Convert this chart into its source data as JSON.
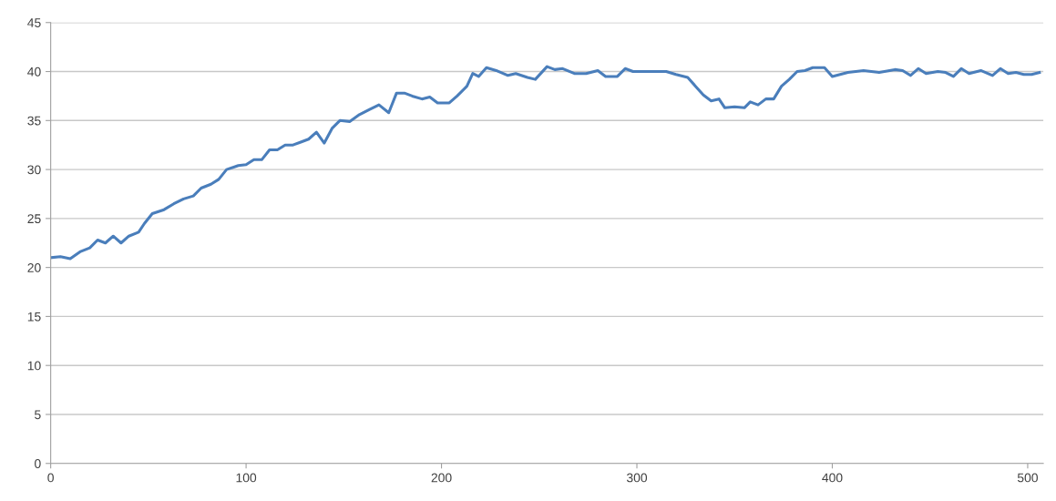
{
  "chart_data": {
    "type": "line",
    "x": [
      0,
      5,
      10,
      15,
      20,
      24,
      28,
      32,
      36,
      40,
      45,
      48,
      52,
      58,
      63,
      68,
      73,
      77,
      82,
      86,
      90,
      96,
      100,
      104,
      108,
      112,
      116,
      120,
      124,
      128,
      132,
      136,
      140,
      144,
      148,
      153,
      158,
      163,
      168,
      173,
      177,
      181,
      185,
      190,
      194,
      198,
      204,
      208,
      213,
      216,
      219,
      223,
      228,
      234,
      238,
      244,
      248,
      254,
      258,
      262,
      268,
      274,
      280,
      284,
      290,
      294,
      298,
      305,
      315,
      320,
      326,
      330,
      334,
      338,
      342,
      345,
      350,
      355,
      358,
      362,
      366,
      370,
      374,
      378,
      382,
      386,
      390,
      396,
      400,
      408,
      416,
      424,
      432,
      436,
      440,
      444,
      448,
      454,
      458,
      462,
      466,
      470,
      476,
      482,
      486,
      490,
      494,
      498,
      502,
      506
    ],
    "series": [
      {
        "color": "#4a7ebb",
        "values": [
          21,
          21.1,
          20.9,
          21.6,
          22,
          22.8,
          22.5,
          23.2,
          22.5,
          23.2,
          23.6,
          24.5,
          25.5,
          25.9,
          26.5,
          27,
          27.3,
          28.1,
          28.5,
          29,
          30,
          30.4,
          30.5,
          31,
          31,
          32,
          32,
          32.5,
          32.5,
          32.8,
          33.1,
          33.8,
          32.7,
          34.2,
          35,
          34.9,
          35.6,
          36.1,
          36.6,
          35.8,
          37.8,
          37.8,
          37.5,
          37.2,
          37.4,
          36.8,
          36.8,
          37.5,
          38.5,
          39.8,
          39.5,
          40.4,
          40.1,
          39.6,
          39.8,
          39.4,
          39.2,
          40.5,
          40.2,
          40.3,
          39.8,
          39.8,
          40.1,
          39.5,
          39.5,
          40.3,
          40,
          40,
          40,
          39.7,
          39.4,
          38.5,
          37.6,
          37,
          37.2,
          36.3,
          36.4,
          36.3,
          36.9,
          36.6,
          37.2,
          37.2,
          38.5,
          39.2,
          40,
          40.1,
          40.4,
          40.4,
          39.5,
          39.9,
          40.1,
          39.9,
          40.2,
          40.1,
          39.6,
          40.3,
          39.8,
          40,
          39.9,
          39.5,
          40.3,
          39.8,
          40.1,
          39.6,
          40.3,
          39.8,
          39.9,
          39.7,
          39.7,
          39.9
        ]
      }
    ],
    "xlim": [
      0,
      508
    ],
    "xticks": [
      0,
      100,
      200,
      300,
      400,
      500
    ],
    "ylim": [
      0,
      45
    ],
    "yticks": [
      0,
      5,
      10,
      15,
      20,
      25,
      30,
      35,
      40,
      45
    ],
    "grid": "y",
    "legend": false,
    "marker": "none",
    "line_style": "solid"
  }
}
